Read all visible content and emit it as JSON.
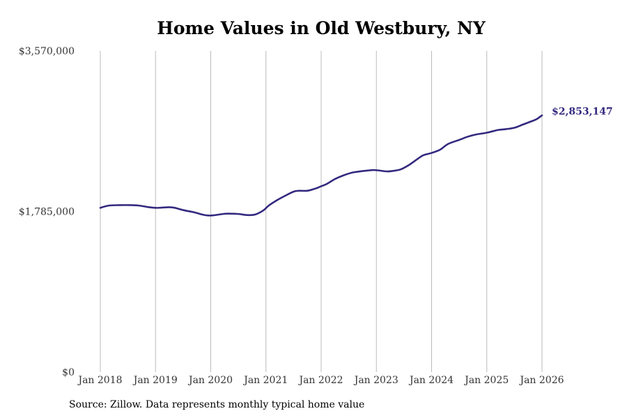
{
  "chart_data": {
    "type": "line",
    "title": "Home Values in Old Westbury, NY",
    "source": "Source: Zillow. Data represents monthly typical home value",
    "xlabel": "",
    "ylabel": "",
    "ylim": [
      0,
      3570000
    ],
    "y_ticks": [
      {
        "value": 0,
        "label": "$0"
      },
      {
        "value": 1785000,
        "label": "$1,785,000"
      },
      {
        "value": 3570000,
        "label": "$3,570,000"
      }
    ],
    "x_ticks": [
      {
        "value": 2018,
        "label": "Jan 2018"
      },
      {
        "value": 2019,
        "label": "Jan 2019"
      },
      {
        "value": 2020,
        "label": "Jan 2020"
      },
      {
        "value": 2021,
        "label": "Jan 2021"
      },
      {
        "value": 2022,
        "label": "Jan 2022"
      },
      {
        "value": 2023,
        "label": "Jan 2023"
      },
      {
        "value": 2024,
        "label": "Jan 2024"
      },
      {
        "value": 2025,
        "label": "Jan 2025"
      },
      {
        "value": 2026,
        "label": "Jan 2026"
      }
    ],
    "xlim": [
      2018,
      2026
    ],
    "grid": "vertical",
    "line_color": "#33297f",
    "series": [
      {
        "name": "Typical home value",
        "x": [
          2018.0,
          2018.15,
          2018.35,
          2018.55,
          2018.7,
          2018.85,
          2019.0,
          2019.1,
          2019.25,
          2019.35,
          2019.5,
          2019.7,
          2019.85,
          2019.95,
          2020.05,
          2020.2,
          2020.3,
          2020.5,
          2020.65,
          2020.8,
          2020.95,
          2021.05,
          2021.2,
          2021.35,
          2021.5,
          2021.6,
          2021.75,
          2021.9,
          2022.0,
          2022.1,
          2022.25,
          2022.4,
          2022.55,
          2022.7,
          2022.85,
          2022.95,
          2023.05,
          2023.2,
          2023.35,
          2023.45,
          2023.6,
          2023.75,
          2023.85,
          2024.0,
          2024.15,
          2024.3,
          2024.5,
          2024.65,
          2024.8,
          2025.0,
          2025.2,
          2025.35,
          2025.5,
          2025.65,
          2025.8,
          2025.9,
          2026.0
        ],
        "values": [
          1825000,
          1850000,
          1855000,
          1855000,
          1850000,
          1835000,
          1825000,
          1827000,
          1832000,
          1825000,
          1800000,
          1775000,
          1750000,
          1740000,
          1742000,
          1755000,
          1760000,
          1757000,
          1745000,
          1750000,
          1795000,
          1850000,
          1910000,
          1960000,
          2005000,
          2015000,
          2015000,
          2040000,
          2065000,
          2090000,
          2145000,
          2185000,
          2215000,
          2230000,
          2240000,
          2245000,
          2240000,
          2230000,
          2240000,
          2255000,
          2305000,
          2370000,
          2410000,
          2435000,
          2470000,
          2535000,
          2580000,
          2615000,
          2640000,
          2660000,
          2690000,
          2700000,
          2715000,
          2750000,
          2785000,
          2810000,
          2853147
        ]
      }
    ],
    "annotations": [
      {
        "x": 2026,
        "value": 2853147,
        "text": "$2,853,147"
      }
    ]
  }
}
